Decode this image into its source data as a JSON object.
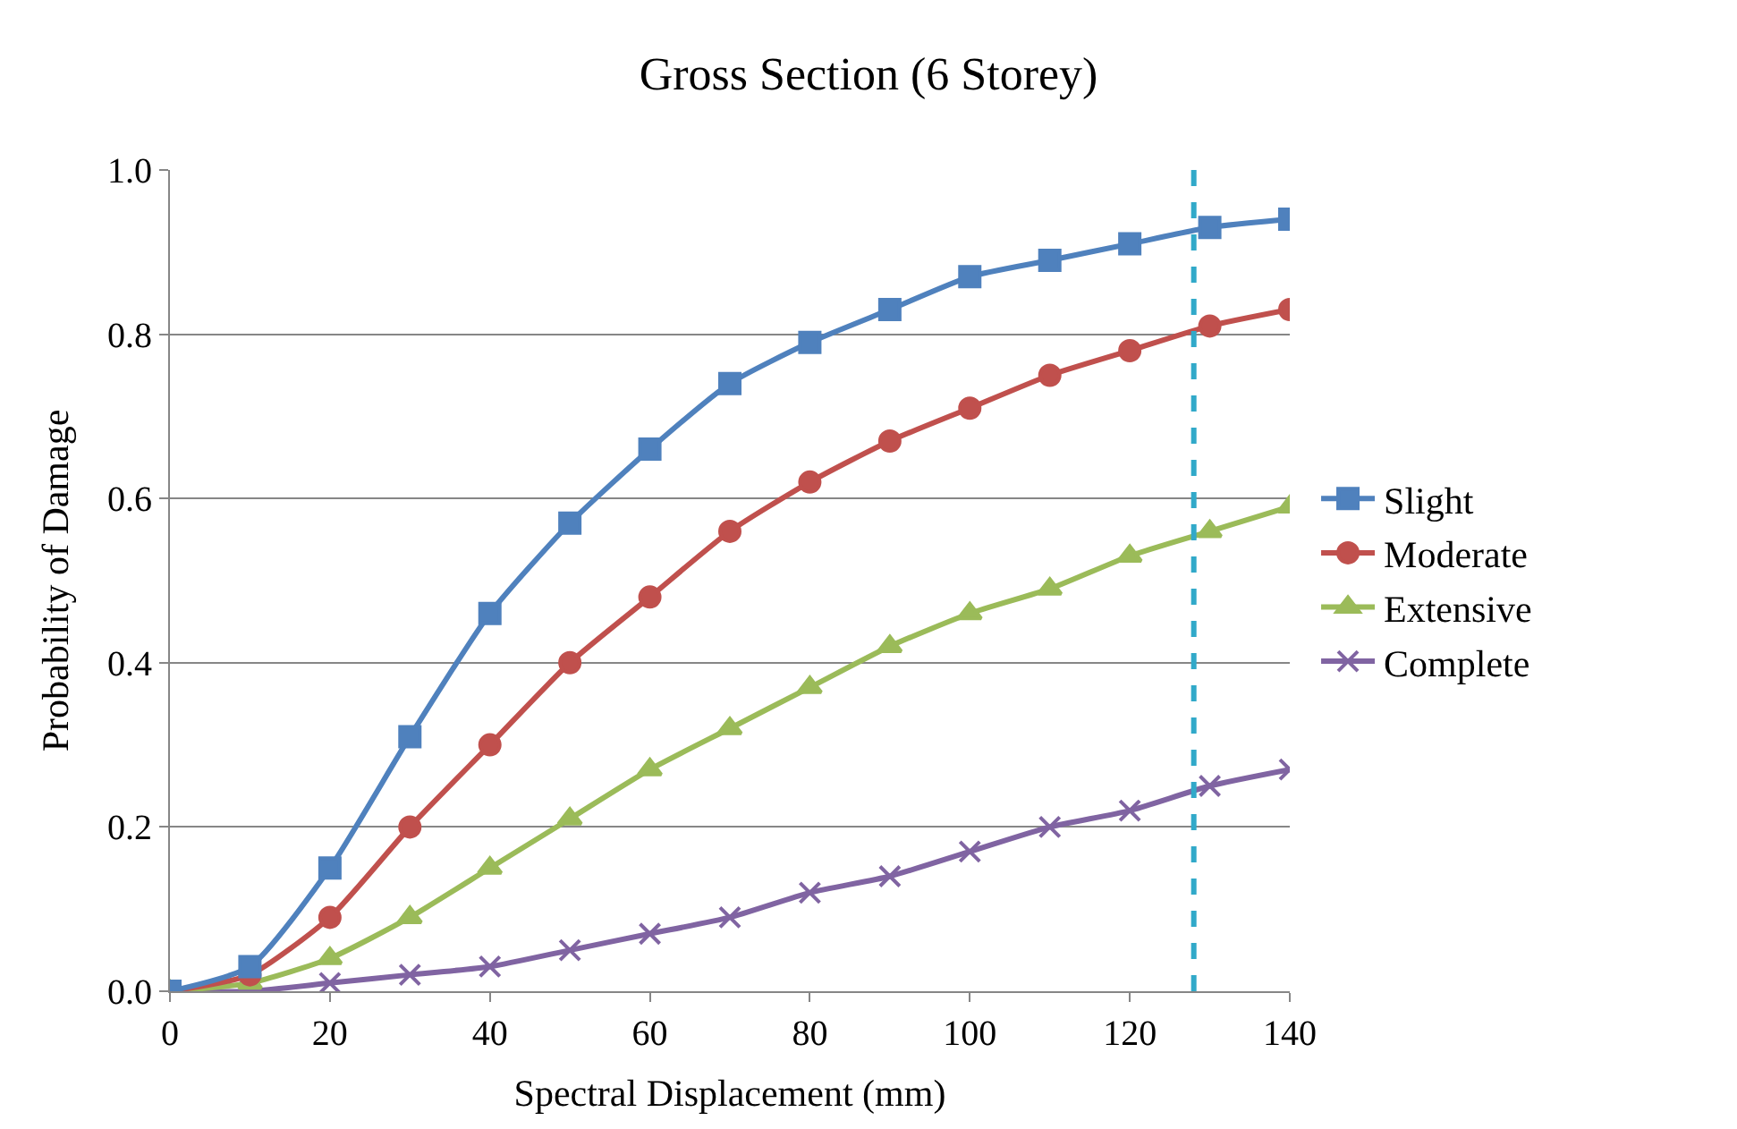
{
  "chart_data": {
    "type": "line",
    "title": "Gross Section (6 Storey)",
    "xlabel": "Spectral Displacement (mm)",
    "ylabel": "Probability of Damage",
    "x": [
      0,
      10,
      20,
      30,
      40,
      50,
      60,
      70,
      80,
      90,
      100,
      110,
      120,
      130,
      140
    ],
    "series": [
      {
        "name": "Slight",
        "color": "#4f81bd",
        "marker": "square",
        "values": [
          0,
          0.03,
          0.15,
          0.31,
          0.46,
          0.57,
          0.66,
          0.74,
          0.79,
          0.83,
          0.87,
          0.89,
          0.91,
          0.93,
          0.94
        ]
      },
      {
        "name": "Moderate",
        "color": "#c0504d",
        "marker": "circle",
        "values": [
          0,
          0.02,
          0.09,
          0.2,
          0.3,
          0.4,
          0.48,
          0.56,
          0.62,
          0.67,
          0.71,
          0.75,
          0.78,
          0.81,
          0.83
        ]
      },
      {
        "name": "Extensive",
        "color": "#9bbb59",
        "marker": "triangle",
        "values": [
          0,
          0.01,
          0.04,
          0.09,
          0.15,
          0.21,
          0.27,
          0.32,
          0.37,
          0.42,
          0.46,
          0.49,
          0.53,
          0.56,
          0.59
        ]
      },
      {
        "name": "Complete",
        "color": "#8064a2",
        "marker": "cross",
        "values": [
          0,
          0.0,
          0.01,
          0.02,
          0.03,
          0.05,
          0.07,
          0.09,
          0.12,
          0.14,
          0.17,
          0.2,
          0.22,
          0.25,
          0.27
        ]
      }
    ],
    "xlim": [
      0,
      140
    ],
    "xticks": [
      0,
      20,
      40,
      60,
      80,
      100,
      120,
      140
    ],
    "ylim": [
      0,
      1.0
    ],
    "yticks": [
      {
        "value": 0,
        "label": "0.0"
      },
      {
        "value": 0.2,
        "label": "0.2"
      },
      {
        "value": 0.4,
        "label": "0.4"
      },
      {
        "value": 0.6,
        "label": "0.6"
      },
      {
        "value": 0.8,
        "label": "0.8"
      },
      {
        "value": 1.0,
        "label": "1.0"
      }
    ],
    "ref_lines": [
      {
        "axis": "x",
        "value": 128,
        "color": "#31a9c9",
        "line_style": "dashed"
      }
    ],
    "grid": "y",
    "legend": "right",
    "line_style": "solid"
  }
}
